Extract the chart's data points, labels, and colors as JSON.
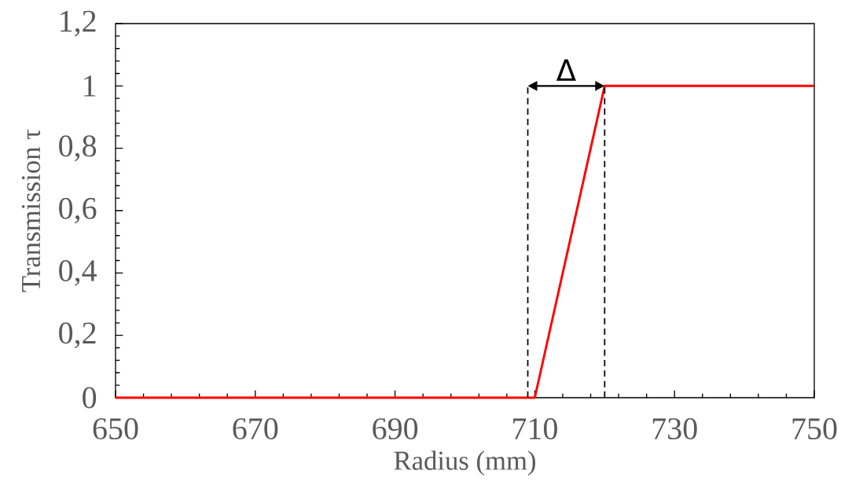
{
  "chart_data": {
    "type": "line",
    "xlabel": "Radius (mm)",
    "ylabel": "Transmission τ",
    "xlim": [
      650,
      750
    ],
    "xticks": [
      650,
      670,
      690,
      710,
      730,
      750
    ],
    "ylim": [
      0,
      1.2
    ],
    "yticks": [
      0,
      {
        "value": 0.2,
        "label": "0,2"
      },
      {
        "value": 0.4,
        "label": "0,4"
      },
      {
        "value": 0.6,
        "label": "0,6"
      },
      {
        "value": 0.8,
        "label": "0,8"
      },
      1,
      {
        "value": 1.2,
        "label": "1,2"
      }
    ],
    "grid": false,
    "marker": "none",
    "series": [
      {
        "color": "#ff0000",
        "line_style": "solid",
        "x": [
          650,
          710,
          720,
          750
        ],
        "values": [
          0,
          0,
          1,
          1
        ]
      },
      {
        "color": "#000000",
        "line_style": "dashed",
        "x": [
          709,
          709
        ],
        "values": [
          0,
          1
        ]
      },
      {
        "color": "#000000",
        "line_style": "dashed",
        "x": [
          720,
          720
        ],
        "values": [
          0,
          1
        ]
      }
    ],
    "annotations": [
      "Δ"
    ]
  }
}
